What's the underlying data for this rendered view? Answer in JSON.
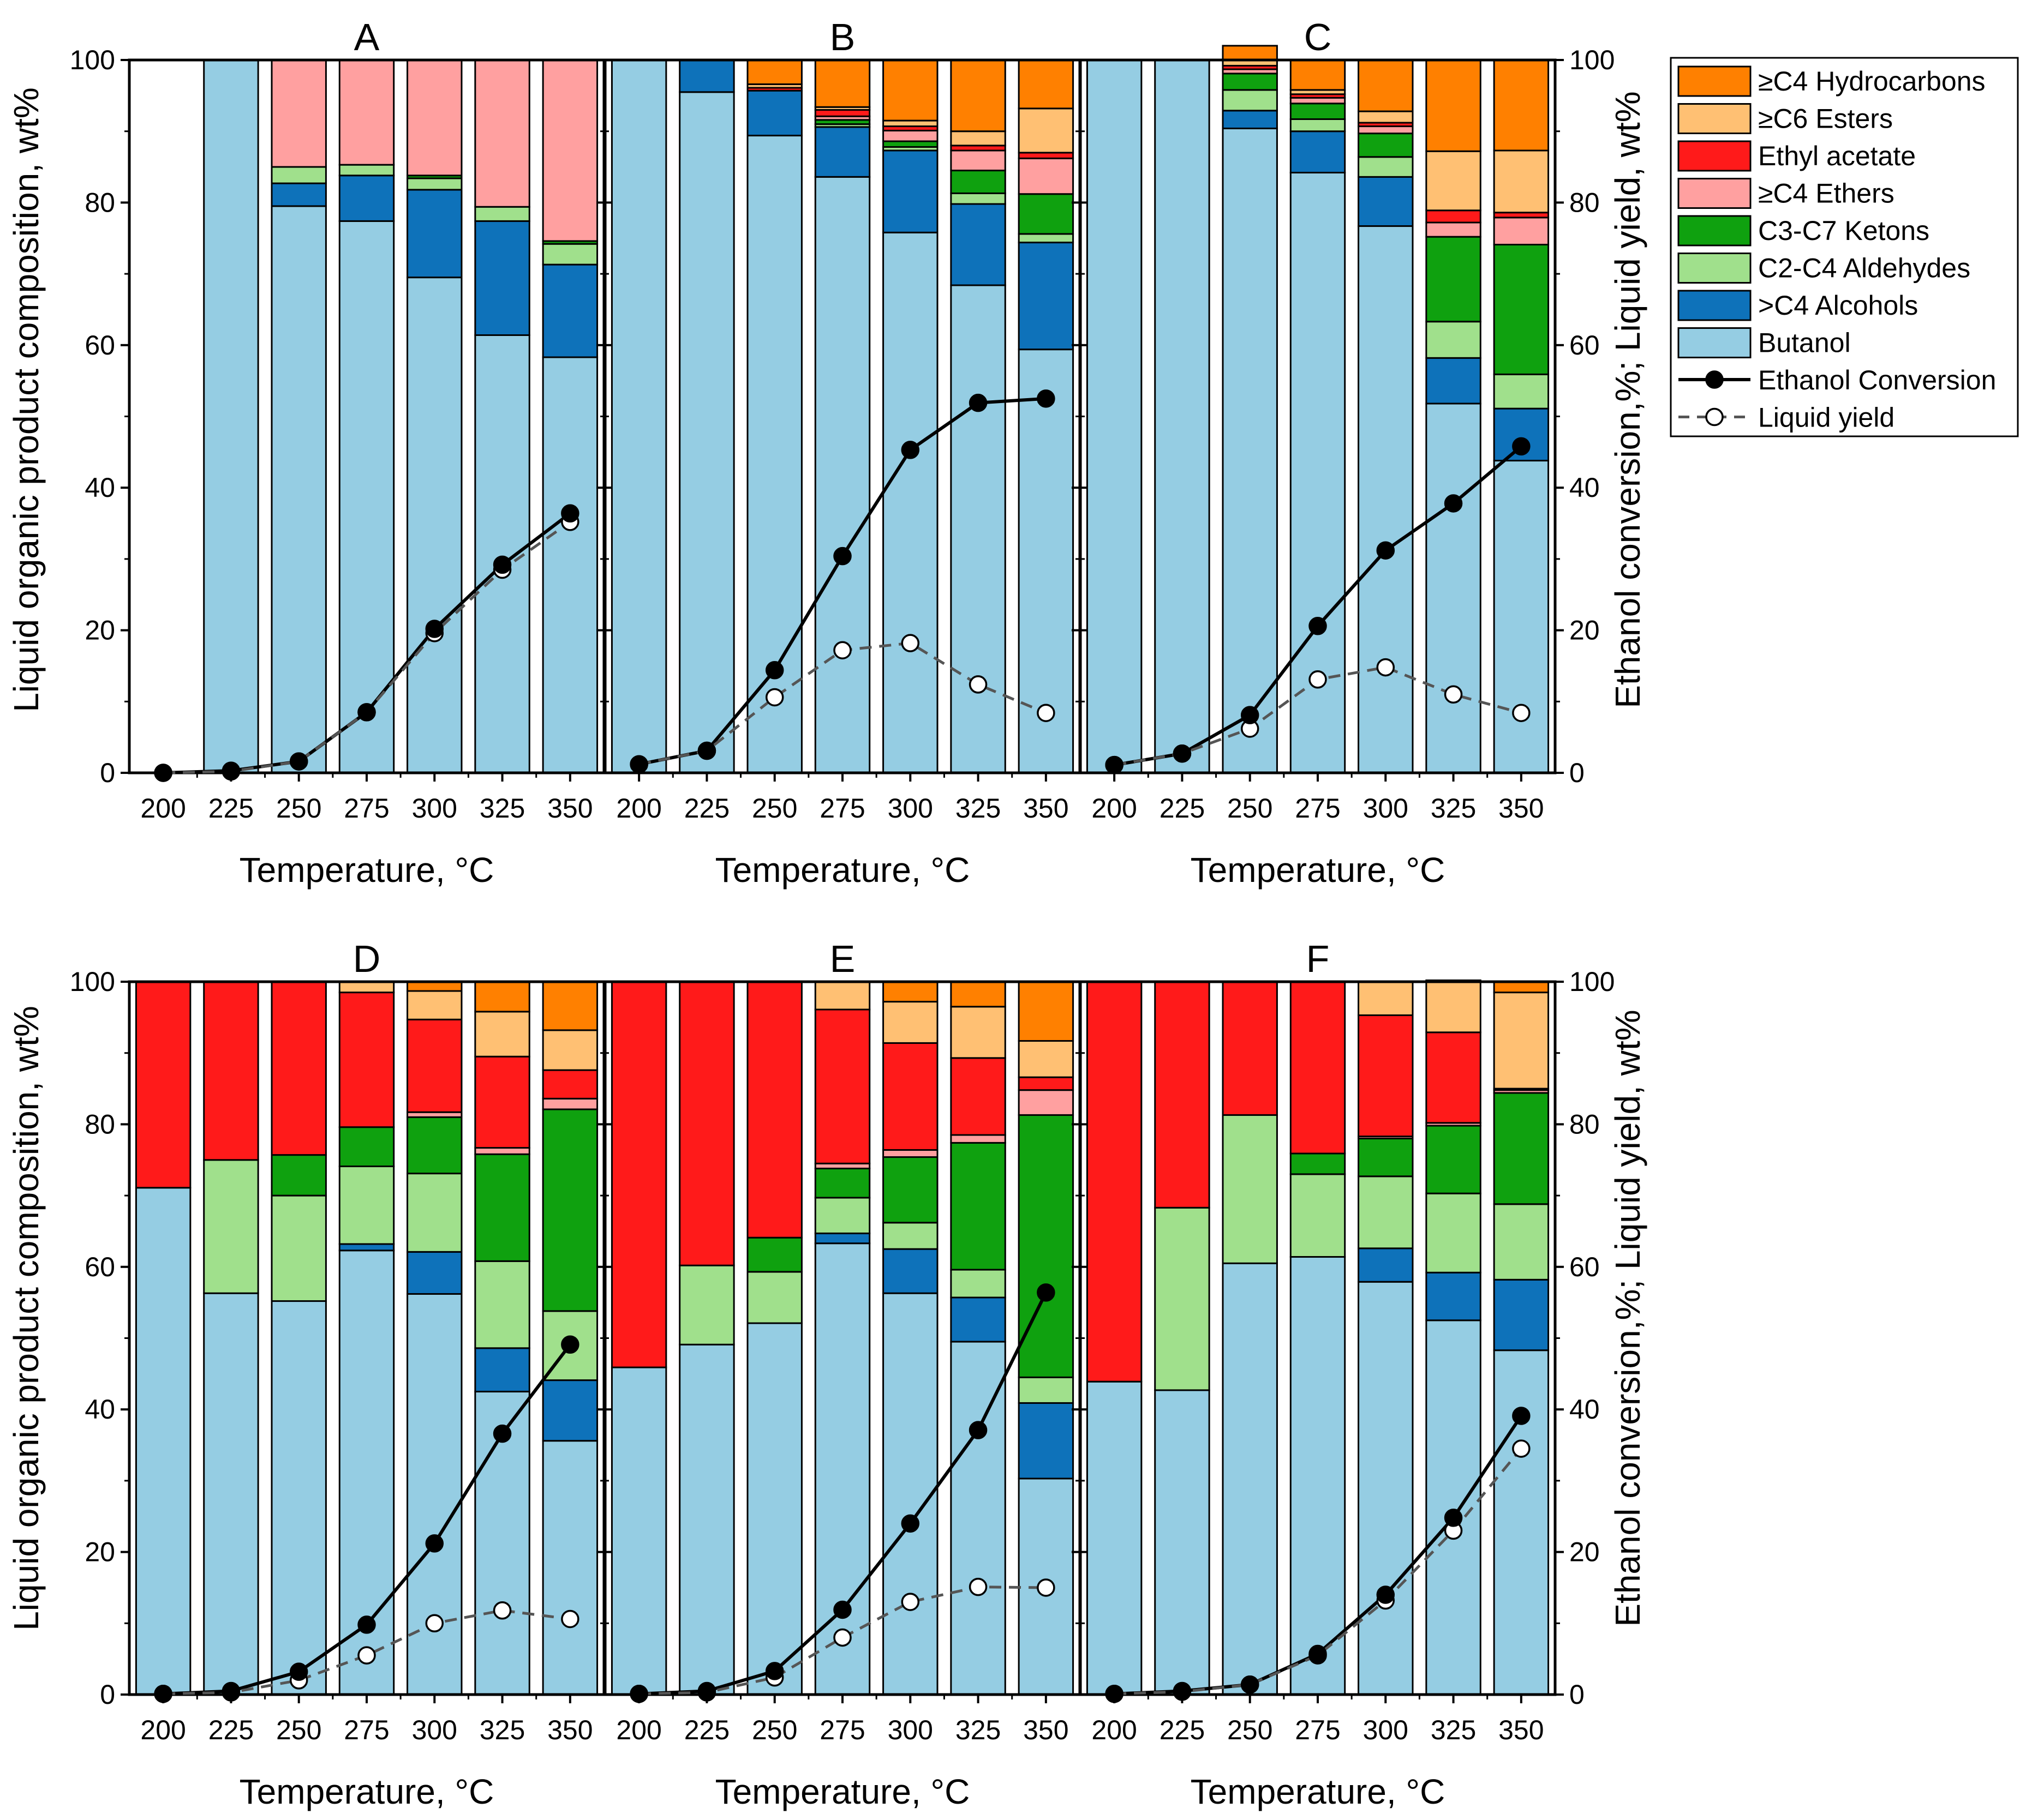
{
  "figure": {
    "left_axis_label": "Liquid organic product composition, wt%",
    "right_axis_label": "Ethanol conversion,%; Liquid yield, wt%",
    "x_axis_label": "Temperature, °C",
    "ylim": [
      0,
      100
    ],
    "y_ticks": [
      "0",
      "20",
      "40",
      "60",
      "80",
      "100"
    ],
    "x_categories": [
      "200",
      "225",
      "250",
      "275",
      "300",
      "325",
      "350"
    ]
  },
  "legend": {
    "items": [
      {
        "label": "≥C4 Hydrocarbons",
        "color": "#FF8000",
        "kind": "box"
      },
      {
        "label": "≥C6 Esters",
        "color": "#FFC073",
        "kind": "box"
      },
      {
        "label": "Ethyl acetate",
        "color": "#FF1A1A",
        "kind": "box"
      },
      {
        "label": "≥C4 Ethers",
        "color": "#FFA0A0",
        "kind": "box"
      },
      {
        "label": "C3-C7 Ketons",
        "color": "#0FA10F",
        "kind": "box"
      },
      {
        "label": "C2-C4 Aldehydes",
        "color": "#A0E08C",
        "kind": "box"
      },
      {
        "label": ">C4 Alcohols",
        "color": "#0E72BA",
        "kind": "box"
      },
      {
        "label": "Butanol",
        "color": "#95CDE3",
        "kind": "box"
      },
      {
        "label": "Ethanol Conversion",
        "color": "#000000",
        "kind": "solid-line"
      },
      {
        "label": "Liquid yield",
        "color": "#555555",
        "kind": "dashed-line"
      }
    ]
  },
  "chart_data": [
    {
      "type": "stacked-bar-with-lines",
      "title": "A",
      "categories": [
        "200",
        "225",
        "250",
        "275",
        "300",
        "325",
        "350"
      ],
      "stack_order": [
        "Butanol",
        ">C4 Alcohols",
        "C2-C4 Aldehydes",
        "C3-C7 Ketons",
        "≥C4 Ethers",
        "Ethyl acetate",
        "≥C6 Esters",
        "≥C4 Hydrocarbons"
      ],
      "series": [
        {
          "name": "Butanol",
          "values": [
            0,
            100,
            79.5,
            77.4,
            69.5,
            61.4,
            58.3
          ]
        },
        {
          "name": ">C4 Alcohols",
          "values": [
            0,
            0,
            3.2,
            6.4,
            12.3,
            16.0,
            13.0
          ]
        },
        {
          "name": "C2-C4 Aldehydes",
          "values": [
            0,
            0,
            2.3,
            1.5,
            1.6,
            2.0,
            2.9
          ]
        },
        {
          "name": "C3-C7 Ketons",
          "values": [
            0,
            0,
            0,
            0,
            0.4,
            0,
            0.4
          ]
        },
        {
          "name": "≥C4 Ethers",
          "values": [
            0,
            0,
            15.0,
            14.7,
            16.2,
            20.6,
            25.4
          ]
        },
        {
          "name": "Ethyl acetate",
          "values": [
            0,
            0,
            0,
            0,
            0,
            0,
            0
          ]
        },
        {
          "name": "≥C6 Esters",
          "values": [
            0,
            0,
            0,
            0,
            0,
            0,
            0
          ]
        },
        {
          "name": "≥C4 Hydrocarbons",
          "values": [
            0,
            0,
            0,
            0,
            0,
            0,
            0
          ]
        }
      ],
      "lines": [
        {
          "name": "Ethanol Conversion",
          "values": [
            0,
            0.3,
            1.6,
            8.5,
            20.2,
            29.2,
            36.4
          ]
        },
        {
          "name": "Liquid yield",
          "values": [
            0,
            0.2,
            1.6,
            8.5,
            19.6,
            28.5,
            35.2
          ]
        }
      ]
    },
    {
      "type": "stacked-bar-with-lines",
      "title": "B",
      "categories": [
        "200",
        "225",
        "250",
        "275",
        "300",
        "325",
        "350"
      ],
      "stack_order": [
        "Butanol",
        ">C4 Alcohols",
        "C2-C4 Aldehydes",
        "C3-C7 Ketons",
        "≥C4 Ethers",
        "Ethyl acetate",
        "≥C6 Esters",
        "≥C4 Hydrocarbons"
      ],
      "series": [
        {
          "name": "Butanol",
          "values": [
            100,
            95.5,
            89.4,
            83.6,
            75.8,
            68.4,
            59.4
          ]
        },
        {
          "name": ">C4 Alcohols",
          "values": [
            0,
            4.5,
            6.3,
            7.0,
            11.5,
            11.4,
            15.0
          ]
        },
        {
          "name": "C2-C4 Aldehydes",
          "values": [
            0,
            0,
            0,
            0.4,
            0.5,
            1.5,
            1.2
          ]
        },
        {
          "name": "C3-C7 Ketons",
          "values": [
            0,
            0,
            0,
            0.6,
            0.8,
            3.2,
            5.6
          ]
        },
        {
          "name": "≥C4 Ethers",
          "values": [
            0,
            0,
            0,
            0.5,
            1.5,
            2.8,
            5.0
          ]
        },
        {
          "name": "Ethyl acetate",
          "values": [
            0,
            0,
            0.4,
            0.9,
            0.6,
            0.7,
            0.8
          ]
        },
        {
          "name": "≥C6 Esters",
          "values": [
            0,
            0,
            0.5,
            0.4,
            0.8,
            2.0,
            6.2
          ]
        },
        {
          "name": "≥C4 Hydrocarbons",
          "values": [
            0,
            0,
            3.4,
            6.6,
            8.5,
            10.0,
            6.8
          ]
        }
      ],
      "lines": [
        {
          "name": "Ethanol Conversion",
          "values": [
            1.2,
            3.1,
            14.4,
            30.4,
            45.3,
            51.9,
            52.5
          ]
        },
        {
          "name": "Liquid yield",
          "values": [
            1.2,
            3.1,
            10.6,
            17.2,
            18.2,
            12.4,
            8.4
          ]
        }
      ]
    },
    {
      "type": "stacked-bar-with-lines",
      "title": "C",
      "categories": [
        "200",
        "225",
        "250",
        "275",
        "300",
        "325",
        "350"
      ],
      "stack_order": [
        "Butanol",
        ">C4 Alcohols",
        "C2-C4 Aldehydes",
        "C3-C7 Ketons",
        "≥C4 Ethers",
        "Ethyl acetate",
        "≥C6 Esters",
        "≥C4 Hydrocarbons"
      ],
      "series": [
        {
          "name": "Butanol",
          "values": [
            100,
            100,
            90.4,
            84.2,
            76.7,
            51.8,
            43.8
          ]
        },
        {
          "name": ">C4 Alcohols",
          "values": [
            0,
            0,
            2.5,
            5.8,
            6.9,
            6.4,
            7.3
          ]
        },
        {
          "name": "C2-C4 Aldehydes",
          "values": [
            0,
            0,
            2.9,
            1.7,
            2.8,
            5.1,
            4.8
          ]
        },
        {
          "name": "C3-C7 Ketons",
          "values": [
            0,
            0,
            2.3,
            2.2,
            3.3,
            11.9,
            18.2
          ]
        },
        {
          "name": "≥C4 Ethers",
          "values": [
            0,
            0,
            0.6,
            0.8,
            1.0,
            2.0,
            3.8
          ]
        },
        {
          "name": "Ethyl acetate",
          "values": [
            0,
            0,
            0.5,
            0.5,
            0.5,
            1.7,
            0.7
          ]
        },
        {
          "name": "≥C6 Esters",
          "values": [
            0,
            0,
            0.8,
            0.6,
            1.6,
            8.3,
            8.7
          ]
        },
        {
          "name": "≥C4 Hydrocarbons",
          "values": [
            0,
            0,
            2.0,
            4.2,
            7.2,
            12.8,
            12.7
          ]
        }
      ],
      "lines": [
        {
          "name": "Ethanol Conversion",
          "values": [
            1.1,
            2.7,
            8.1,
            20.6,
            31.2,
            37.8,
            45.8
          ]
        },
        {
          "name": "Liquid yield",
          "values": [
            1.1,
            2.7,
            6.2,
            13.1,
            14.8,
            11.0,
            8.4
          ]
        }
      ]
    },
    {
      "type": "stacked-bar-with-lines",
      "title": "D",
      "categories": [
        "200",
        "225",
        "250",
        "275",
        "300",
        "325",
        "350"
      ],
      "stack_order": [
        "Butanol",
        ">C4 Alcohols",
        "C2-C4 Aldehydes",
        "C3-C7 Ketons",
        "≥C4 Ethers",
        "Ethyl acetate",
        "≥C6 Esters",
        "≥C4 Hydrocarbons"
      ],
      "series": [
        {
          "name": "Butanol",
          "values": [
            71.1,
            56.3,
            55.2,
            62.3,
            56.2,
            42.5,
            35.6
          ]
        },
        {
          "name": ">C4 Alcohols",
          "values": [
            0,
            0,
            0,
            0.9,
            5.9,
            6.1,
            8.5
          ]
        },
        {
          "name": "C2-C4 Aldehydes",
          "values": [
            0,
            18.7,
            14.8,
            10.9,
            11.0,
            12.2,
            9.7
          ]
        },
        {
          "name": "C3-C7 Ketons",
          "values": [
            0,
            0,
            5.7,
            5.5,
            7.9,
            15.0,
            28.3
          ]
        },
        {
          "name": "≥C4 Ethers",
          "values": [
            0,
            0,
            0,
            0,
            0.7,
            0.9,
            1.5
          ]
        },
        {
          "name": "Ethyl acetate",
          "values": [
            28.9,
            25.0,
            24.3,
            18.9,
            13.0,
            12.8,
            4.0
          ]
        },
        {
          "name": "≥C6 Esters",
          "values": [
            0,
            0,
            0,
            1.5,
            4.0,
            6.3,
            5.6
          ]
        },
        {
          "name": "≥C4 Hydrocarbons",
          "values": [
            0,
            0,
            0,
            0,
            1.3,
            4.2,
            6.8
          ]
        }
      ],
      "lines": [
        {
          "name": "Ethanol Conversion",
          "values": [
            0.1,
            0.5,
            3.2,
            9.8,
            21.2,
            36.6,
            49.1
          ]
        },
        {
          "name": "Liquid yield",
          "values": [
            0.1,
            0.3,
            2.0,
            5.5,
            10.0,
            11.8,
            10.6
          ]
        }
      ]
    },
    {
      "type": "stacked-bar-with-lines",
      "title": "E",
      "categories": [
        "200",
        "225",
        "250",
        "275",
        "300",
        "325",
        "350"
      ],
      "stack_order": [
        "Butanol",
        ">C4 Alcohols",
        "C2-C4 Aldehydes",
        "C3-C7 Ketons",
        "≥C4 Ethers",
        "Ethyl acetate",
        "≥C6 Esters",
        "≥C4 Hydrocarbons"
      ],
      "series": [
        {
          "name": "Butanol",
          "values": [
            45.9,
            49.1,
            52.1,
            63.3,
            56.3,
            49.5,
            30.3
          ]
        },
        {
          "name": ">C4 Alcohols",
          "values": [
            0,
            0,
            0,
            1.4,
            6.2,
            6.2,
            10.6
          ]
        },
        {
          "name": "C2-C4 Aldehydes",
          "values": [
            0,
            11.1,
            7.2,
            5.0,
            3.7,
            3.9,
            3.6
          ]
        },
        {
          "name": "C3-C7 Ketons",
          "values": [
            0,
            0,
            4.8,
            4.1,
            9.2,
            17.8,
            36.8
          ]
        },
        {
          "name": "≥C4 Ethers",
          "values": [
            0,
            0,
            0,
            0.7,
            1.0,
            1.1,
            3.5
          ]
        },
        {
          "name": "Ethyl acetate",
          "values": [
            54.1,
            39.8,
            35.9,
            21.6,
            15.0,
            10.8,
            1.8
          ]
        },
        {
          "name": "≥C6 Esters",
          "values": [
            0,
            0,
            0,
            3.9,
            5.8,
            7.2,
            5.1
          ]
        },
        {
          "name": "≥C4 Hydrocarbons",
          "values": [
            0,
            0,
            0,
            0,
            2.8,
            3.5,
            8.3
          ]
        }
      ],
      "lines": [
        {
          "name": "Ethanol Conversion",
          "values": [
            0.1,
            0.5,
            3.3,
            11.9,
            24.0,
            37.1,
            56.4
          ]
        },
        {
          "name": "Liquid yield",
          "values": [
            0.1,
            0.3,
            2.4,
            8.0,
            13.0,
            15.1,
            15.0
          ]
        }
      ]
    },
    {
      "type": "stacked-bar-with-lines",
      "title": "F",
      "categories": [
        "200",
        "225",
        "250",
        "275",
        "300",
        "325",
        "350"
      ],
      "stack_order": [
        "Butanol",
        ">C4 Alcohols",
        "C2-C4 Aldehydes",
        "C3-C7 Ketons",
        "≥C4 Ethers",
        "Ethyl acetate",
        "≥C6 Esters",
        "≥C4 Hydrocarbons"
      ],
      "series": [
        {
          "name": "Butanol",
          "values": [
            43.9,
            42.7,
            60.5,
            61.4,
            57.9,
            52.5,
            48.3
          ]
        },
        {
          "name": ">C4 Alcohols",
          "values": [
            0,
            0,
            0,
            0,
            4.7,
            6.7,
            9.9
          ]
        },
        {
          "name": "C2-C4 Aldehydes",
          "values": [
            0,
            25.6,
            20.8,
            11.6,
            10.1,
            11.1,
            10.6
          ]
        },
        {
          "name": "C3-C7 Ketons",
          "values": [
            0,
            0,
            0,
            2.9,
            5.3,
            9.5,
            15.6
          ]
        },
        {
          "name": "≥C4 Ethers",
          "values": [
            0,
            0,
            0,
            0,
            0.3,
            0.4,
            0.4
          ]
        },
        {
          "name": "Ethyl acetate",
          "values": [
            56.1,
            31.7,
            18.7,
            24.1,
            17.0,
            12.7,
            0.2
          ]
        },
        {
          "name": "≥C6 Esters",
          "values": [
            0,
            0,
            0,
            0,
            4.7,
            7.3,
            13.5
          ]
        },
        {
          "name": "≥C4 Hydrocarbons",
          "values": [
            0,
            0,
            0,
            0,
            0,
            0,
            1.5
          ]
        }
      ],
      "lines": [
        {
          "name": "Ethanol Conversion",
          "values": [
            0.1,
            0.5,
            1.4,
            5.7,
            14.0,
            24.8,
            39.1
          ]
        },
        {
          "name": "Liquid yield",
          "values": [
            0.1,
            0.4,
            1.4,
            5.5,
            13.2,
            23.0,
            34.5
          ]
        }
      ]
    }
  ]
}
